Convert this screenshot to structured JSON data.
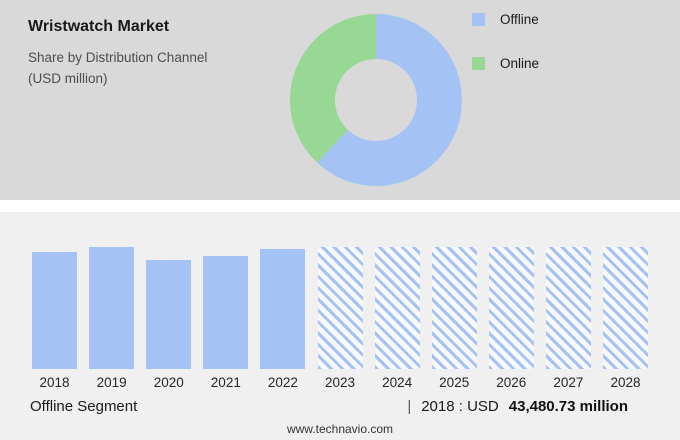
{
  "header": {
    "title": "Wristwatch Market",
    "subtitle_line1": "Share by Distribution Channel",
    "subtitle_line2": "(USD million)"
  },
  "colors": {
    "offline_blue": "#a4c2f4",
    "online_green": "#97d895",
    "top_background": "#d9d9d9",
    "bottom_background": "#f0f0f0"
  },
  "legend": {
    "items": [
      {
        "label": "Offline",
        "color": "#a4c2f4"
      },
      {
        "label": "Online",
        "color": "#97d895"
      }
    ]
  },
  "chart_data": [
    {
      "type": "pie",
      "title": "Wristwatch Market — Share by Distribution Channel (USD million)",
      "labels": [
        "Offline",
        "Online"
      ],
      "values_pct": [
        62,
        38
      ],
      "colors": [
        "#a4c2f4",
        "#97d895"
      ],
      "donut": true,
      "legend_position": "right"
    },
    {
      "type": "bar",
      "categories": [
        "2018",
        "2019",
        "2020",
        "2021",
        "2022",
        "2023",
        "2024",
        "2025",
        "2026",
        "2027",
        "2028"
      ],
      "series": [
        {
          "name": "Offline segment size (relative bar height %)",
          "values": [
            96,
            100,
            89,
            93,
            98,
            100,
            100,
            100,
            100,
            100,
            100
          ]
        }
      ],
      "bar_color": "#a4c2f4",
      "forecast_from_category": "2023",
      "forecast_style": "diagonal-hatch",
      "known_values": {
        "2018": "USD 43,480.73 million"
      },
      "xlabel": "",
      "ylabel": "",
      "grid": false,
      "legend_position": "none"
    }
  ],
  "footer": {
    "segment_label": "Offline Segment",
    "divider": "|",
    "value_prefix": "2018 : USD",
    "value_bold": "43,480.73 million",
    "website": "www.technavio.com"
  }
}
